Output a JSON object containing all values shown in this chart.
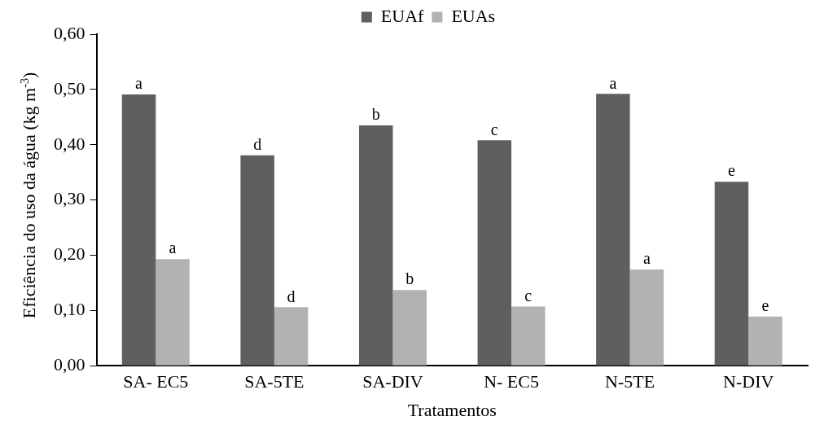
{
  "chart_data": {
    "type": "bar",
    "xlabel": "Tratamentos",
    "ylabel": "Eficiência do uso da água (kg m$^{-3}$)",
    "categories": [
      "SA- EC5",
      "SA-5TE",
      "SA-DIV",
      "N- EC5",
      "N-5TE",
      "N-DIV"
    ],
    "series": [
      {
        "name": "EUAf",
        "color": "#5f5f5f",
        "values": [
          0.491,
          0.381,
          0.435,
          0.408,
          0.492,
          0.333
        ]
      },
      {
        "name": "EUAs",
        "color": "#b2b2b2",
        "values": [
          0.193,
          0.106,
          0.137,
          0.107,
          0.174,
          0.089
        ]
      }
    ],
    "ylim": [
      0,
      0.6
    ],
    "yticks": [
      {
        "value": 0,
        "label": "0,00"
      },
      {
        "value": 0.1,
        "label": "0,10"
      },
      {
        "value": 0.2,
        "label": "0,20"
      },
      {
        "value": 0.3,
        "label": "0,30"
      },
      {
        "value": 0.4,
        "label": "0,40"
      },
      {
        "value": 0.5,
        "label": "0,50"
      },
      {
        "value": 0.6,
        "label": "0,60"
      }
    ],
    "grid": false,
    "legend": "top",
    "annotations": [
      {
        "text": "a",
        "x": "SA- EC5",
        "y": 0.491
      },
      {
        "text": "a",
        "x": "SA- EC5",
        "y": 0.193
      },
      {
        "text": "d",
        "x": "SA-5TE",
        "y": 0.381
      },
      {
        "text": "d",
        "x": "SA-5TE",
        "y": 0.106
      },
      {
        "text": "b",
        "x": "SA-DIV",
        "y": 0.435
      },
      {
        "text": "b",
        "x": "SA-DIV",
        "y": 0.137
      },
      {
        "text": "c",
        "x": "N- EC5",
        "y": 0.408
      },
      {
        "text": "c",
        "x": "N- EC5",
        "y": 0.107
      },
      {
        "text": "a",
        "x": "N-5TE",
        "y": 0.492
      },
      {
        "text": "a",
        "x": "N-5TE",
        "y": 0.174
      },
      {
        "text": "e",
        "x": "N-DIV",
        "y": 0.333
      },
      {
        "text": "e",
        "x": "N-DIV",
        "y": 0.089
      }
    ]
  }
}
